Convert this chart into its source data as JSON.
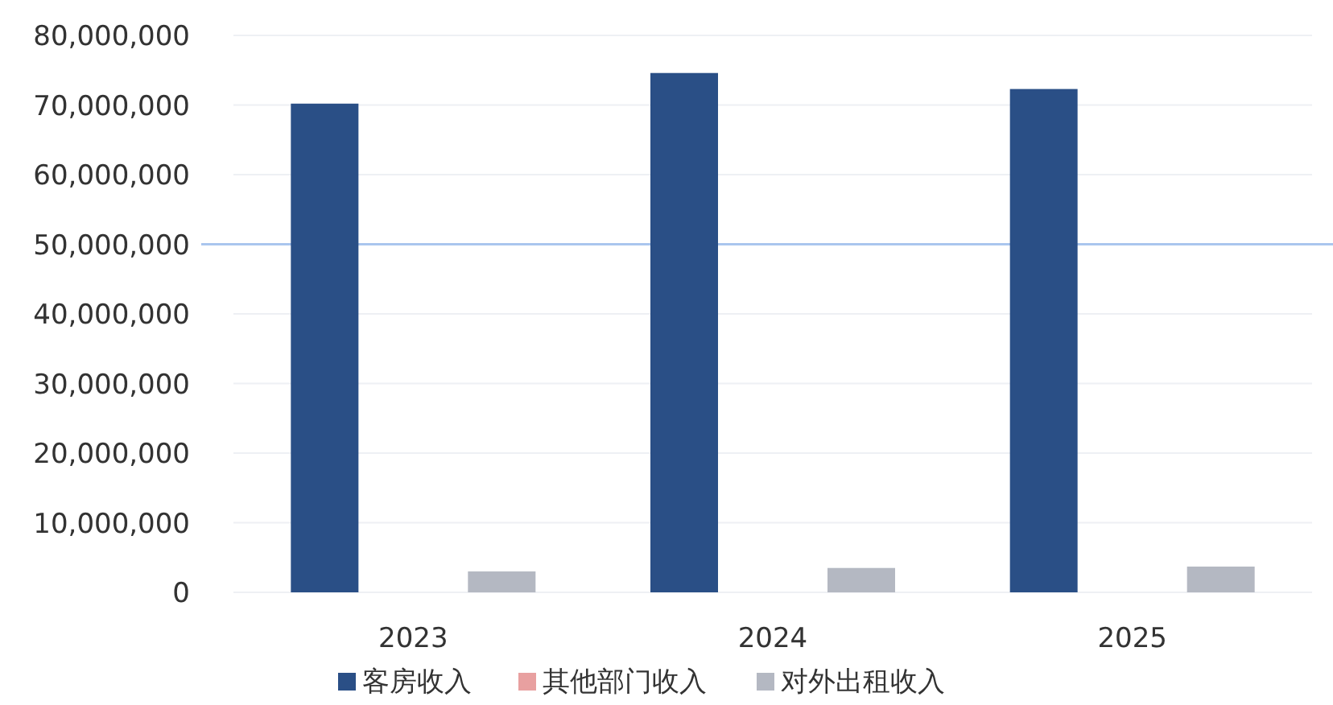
{
  "chart_data": {
    "type": "bar",
    "categories": [
      "2023",
      "2024",
      "2025"
    ],
    "series": [
      {
        "name": "客房收入",
        "color": "#2a4f86",
        "values": [
          70200000,
          74600000,
          72300000
        ]
      },
      {
        "name": "其他部门收入",
        "color": "#e8a0a0",
        "values": [
          0,
          0,
          0
        ]
      },
      {
        "name": "对外出租收入",
        "color": "#b4b8c2",
        "values": [
          3000000,
          3500000,
          3700000
        ]
      }
    ],
    "ylim": [
      0,
      80000000
    ],
    "yticks": [
      {
        "value": 0,
        "label": "0"
      },
      {
        "value": 10000000,
        "label": "10,000,000"
      },
      {
        "value": 20000000,
        "label": "20,000,000"
      },
      {
        "value": 30000000,
        "label": "30,000,000"
      },
      {
        "value": 40000000,
        "label": "40,000,000"
      },
      {
        "value": 50000000,
        "label": "50,000,000"
      },
      {
        "value": 60000000,
        "label": "60,000,000"
      },
      {
        "value": 70000000,
        "label": "70,000,000"
      },
      {
        "value": 80000000,
        "label": "80,000,000"
      }
    ],
    "ref_lines": [
      {
        "axis": "y",
        "value": 50000000,
        "color": "#aac6ee"
      }
    ],
    "grid": "y",
    "legend": "bottom"
  }
}
